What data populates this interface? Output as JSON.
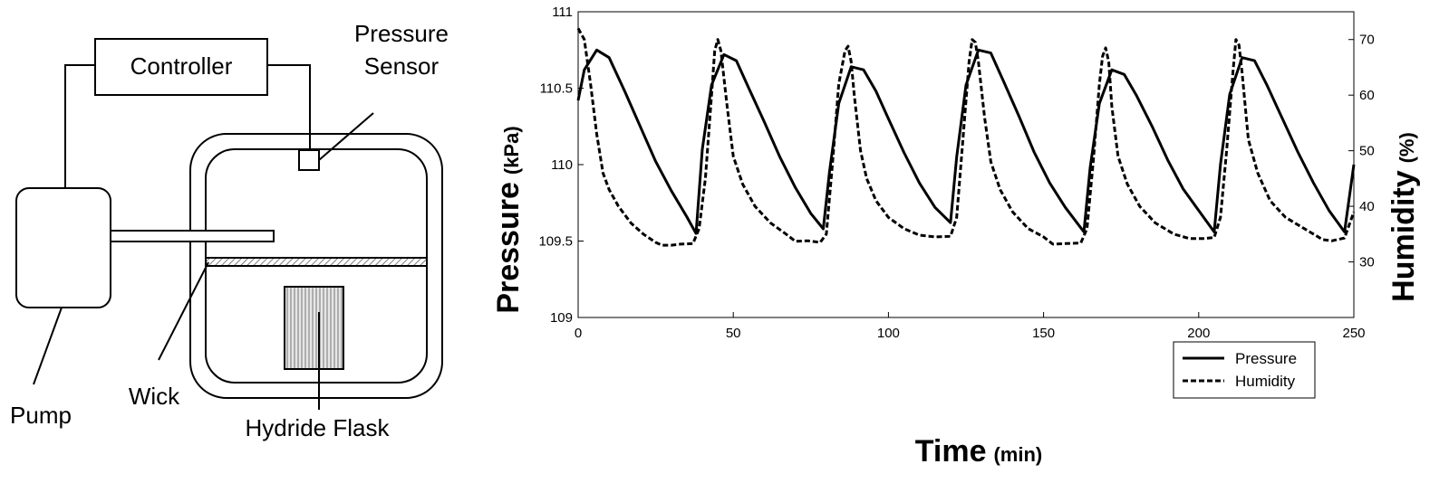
{
  "diagram": {
    "labels": {
      "controller": "Controller",
      "pressure_sensor_line1": "Pressure",
      "pressure_sensor_line2": "Sensor",
      "pump": "Pump",
      "wick": "Wick",
      "hydride_flask": "Hydride Flask"
    }
  },
  "chart_data": {
    "type": "line",
    "title": "",
    "xlabel_main": "Time",
    "xlabel_unit": "(min)",
    "ylabel_main": "Pressure",
    "ylabel_unit": "(kPa)",
    "y2label_main": "Humidity",
    "y2label_unit": "(%)",
    "xlim": [
      0,
      250
    ],
    "ylim": [
      109,
      111
    ],
    "y2lim": [
      20,
      75
    ],
    "x_ticks": [
      "0",
      "50",
      "100",
      "150",
      "200",
      "250"
    ],
    "y_ticks": [
      "109",
      "109.5",
      "110",
      "110.5",
      "111"
    ],
    "y2_ticks": [
      "30",
      "40",
      "50",
      "60",
      "70"
    ],
    "grid": false,
    "legend": {
      "position": "bottom-right",
      "entries": [
        "Pressure",
        "Humidity"
      ]
    },
    "series": [
      {
        "name": "Pressure",
        "axis": "left",
        "style": "solid",
        "x": [
          0,
          2,
          6,
          10,
          15,
          20,
          25,
          30,
          35,
          38,
          40,
          43,
          47,
          51,
          55,
          60,
          65,
          70,
          75,
          79,
          81,
          84,
          88,
          92,
          96,
          100,
          105,
          110,
          115,
          120,
          122,
          125,
          129,
          133,
          137,
          142,
          147,
          152,
          157,
          163,
          165,
          168,
          172,
          176,
          180,
          185,
          190,
          195,
          200,
          205,
          207,
          210,
          214,
          218,
          222,
          227,
          232,
          237,
          242,
          247,
          250
        ],
        "values": [
          110.42,
          110.62,
          110.75,
          110.7,
          110.48,
          110.25,
          110.02,
          109.83,
          109.66,
          109.55,
          110.1,
          110.52,
          110.72,
          110.68,
          110.5,
          110.28,
          110.05,
          109.85,
          109.68,
          109.58,
          109.95,
          110.4,
          110.64,
          110.62,
          110.48,
          110.3,
          110.08,
          109.88,
          109.72,
          109.62,
          110.05,
          110.52,
          110.75,
          110.73,
          110.55,
          110.32,
          110.08,
          109.88,
          109.72,
          109.56,
          109.98,
          110.4,
          110.62,
          110.59,
          110.45,
          110.25,
          110.03,
          109.84,
          109.7,
          109.56,
          110.0,
          110.46,
          110.7,
          110.68,
          110.52,
          110.3,
          110.08,
          109.88,
          109.7,
          109.56,
          110.0
        ]
      },
      {
        "name": "Humidity",
        "axis": "right",
        "style": "dashed",
        "x": [
          0,
          2,
          4,
          6,
          8,
          10,
          13,
          17,
          21,
          25,
          27,
          30,
          33,
          37,
          39,
          41,
          43,
          44,
          45,
          46,
          48,
          50,
          53,
          57,
          62,
          67,
          70,
          74,
          78,
          80,
          82,
          84,
          86,
          87,
          88,
          89,
          91,
          93,
          96,
          100,
          105,
          110,
          115,
          120,
          122,
          124,
          126,
          127,
          128,
          129,
          131,
          133,
          136,
          140,
          145,
          150,
          153,
          157,
          162,
          164,
          166,
          168,
          169,
          170,
          171,
          172,
          174,
          177,
          181,
          186,
          192,
          197,
          202,
          205,
          207,
          209,
          211,
          212,
          213,
          214,
          216,
          219,
          223,
          228,
          234,
          240,
          243,
          247,
          250
        ],
        "values": [
          72,
          70,
          62,
          53,
          46,
          43,
          40,
          37,
          35,
          33.5,
          33,
          33,
          33.2,
          33.3,
          36,
          45,
          60,
          68,
          70,
          68,
          58,
          49,
          44,
          40,
          37,
          35,
          33.7,
          33.8,
          33.5,
          35,
          48,
          62,
          68,
          68.8,
          66,
          60,
          50,
          45,
          41,
          38,
          36,
          34.8,
          34.5,
          34.6,
          38,
          52,
          66,
          70,
          69.5,
          66,
          56,
          48,
          43,
          39,
          36,
          34.5,
          33.2,
          33.3,
          33.4,
          36,
          48,
          62,
          67,
          68.5,
          66,
          58,
          49,
          44,
          40,
          37,
          35,
          34.2,
          34.2,
          34.4,
          38,
          50,
          64,
          70,
          69,
          64,
          52,
          46,
          41,
          38,
          36,
          34,
          33.8,
          34.3,
          39
        ]
      }
    ]
  }
}
